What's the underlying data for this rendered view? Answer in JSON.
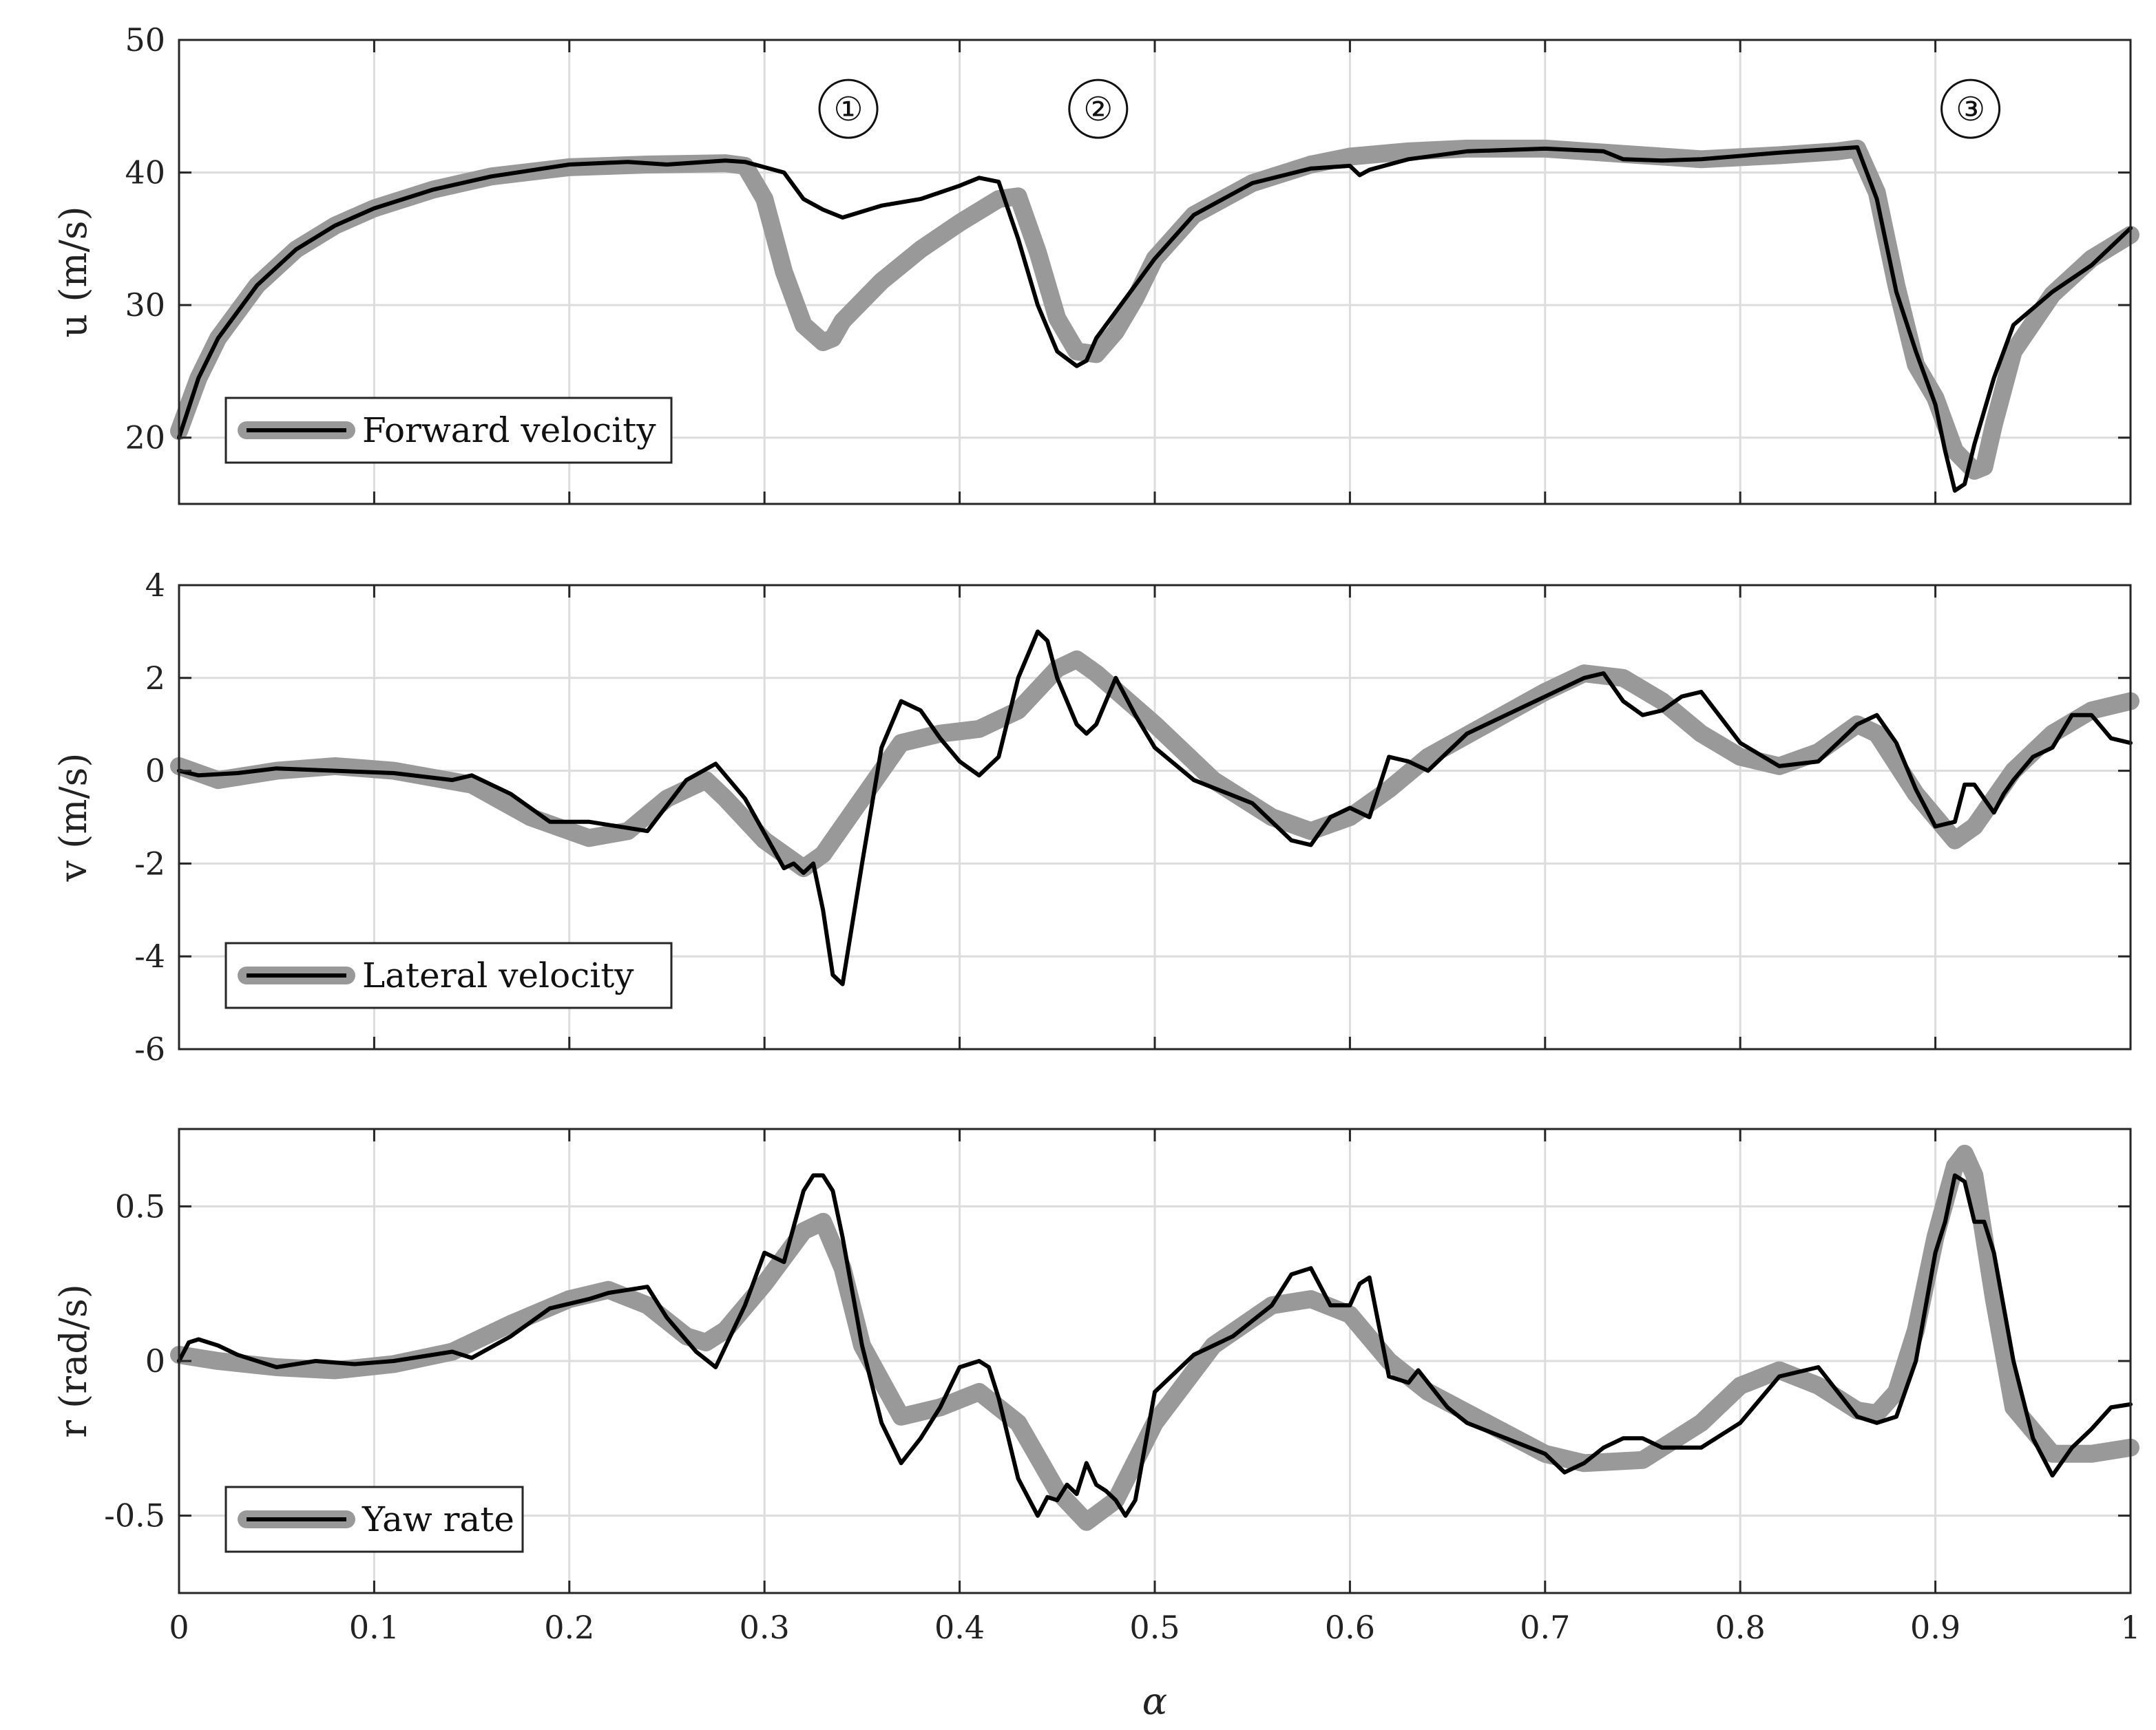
{
  "chart_data": [
    {
      "type": "line",
      "ylabel": "u  (m/s)",
      "xlim": [
        0,
        1
      ],
      "ylim": [
        15,
        50
      ],
      "yticks": [
        20,
        30,
        40,
        50
      ],
      "ytick_labels": [
        "20",
        "30",
        "40",
        "50"
      ],
      "xtick_labels_visible": false,
      "grid": true,
      "legend": {
        "placement": "bottom-left",
        "label": "Forward velocity"
      },
      "annotations": [
        {
          "text": "①",
          "x": 0.343,
          "y": 44.8
        },
        {
          "text": "②",
          "x": 0.471,
          "y": 44.8
        },
        {
          "text": "③",
          "x": 0.918,
          "y": 44.8
        }
      ],
      "series": [
        {
          "name": "reference",
          "color": "#999999",
          "x": [
            0,
            0.01,
            0.02,
            0.04,
            0.06,
            0.08,
            0.1,
            0.13,
            0.16,
            0.2,
            0.24,
            0.28,
            0.29,
            0.3,
            0.31,
            0.32,
            0.33,
            0.335,
            0.34,
            0.36,
            0.38,
            0.4,
            0.42,
            0.43,
            0.44,
            0.45,
            0.46,
            0.47,
            0.48,
            0.49,
            0.5,
            0.52,
            0.55,
            0.58,
            0.6,
            0.63,
            0.66,
            0.7,
            0.74,
            0.78,
            0.82,
            0.85,
            0.86,
            0.87,
            0.88,
            0.89,
            0.9,
            0.91,
            0.92,
            0.925,
            0.93,
            0.94,
            0.96,
            0.98,
            1.0
          ],
          "y": [
            20.5,
            24.5,
            27.5,
            31.5,
            34.2,
            36.0,
            37.3,
            38.7,
            39.7,
            40.4,
            40.6,
            40.7,
            40.5,
            38.0,
            32.5,
            28.5,
            27.2,
            27.5,
            28.8,
            31.8,
            34.2,
            36.2,
            38.0,
            38.2,
            34.0,
            29.0,
            26.5,
            26.3,
            28.0,
            30.5,
            33.5,
            36.8,
            39.2,
            40.6,
            41.2,
            41.6,
            41.8,
            41.8,
            41.4,
            41.0,
            41.3,
            41.6,
            41.8,
            38.5,
            31.5,
            25.5,
            23.0,
            19.0,
            17.5,
            17.8,
            21.0,
            26.5,
            30.8,
            33.5,
            35.3
          ]
        },
        {
          "name": "measured",
          "color": "#000000",
          "x": [
            0,
            0.01,
            0.02,
            0.04,
            0.06,
            0.08,
            0.1,
            0.13,
            0.16,
            0.2,
            0.23,
            0.25,
            0.28,
            0.29,
            0.31,
            0.32,
            0.33,
            0.34,
            0.36,
            0.38,
            0.4,
            0.41,
            0.42,
            0.43,
            0.44,
            0.45,
            0.46,
            0.465,
            0.47,
            0.48,
            0.49,
            0.5,
            0.52,
            0.55,
            0.58,
            0.6,
            0.605,
            0.61,
            0.63,
            0.66,
            0.7,
            0.73,
            0.74,
            0.76,
            0.78,
            0.82,
            0.85,
            0.86,
            0.87,
            0.88,
            0.89,
            0.9,
            0.905,
            0.91,
            0.915,
            0.92,
            0.93,
            0.94,
            0.96,
            0.98,
            1.0
          ],
          "y": [
            20.0,
            24.5,
            27.5,
            31.5,
            34.2,
            36.0,
            37.3,
            38.7,
            39.7,
            40.6,
            40.8,
            40.6,
            40.9,
            40.8,
            40.0,
            38.0,
            37.2,
            36.6,
            37.5,
            38.0,
            39.0,
            39.6,
            39.3,
            35.0,
            30.0,
            26.5,
            25.4,
            25.8,
            27.5,
            29.5,
            31.5,
            33.5,
            36.8,
            39.2,
            40.3,
            40.5,
            39.8,
            40.2,
            41.0,
            41.6,
            41.8,
            41.6,
            41.0,
            40.9,
            41.0,
            41.5,
            41.8,
            41.9,
            38.0,
            31.0,
            26.5,
            22.5,
            19.0,
            16.0,
            16.5,
            19.5,
            24.5,
            28.5,
            31.0,
            33.0,
            35.8
          ]
        }
      ]
    },
    {
      "type": "line",
      "ylabel": "v  (m/s)",
      "xlim": [
        0,
        1
      ],
      "ylim": [
        -6,
        4
      ],
      "yticks": [
        -6,
        -4,
        -2,
        0,
        2,
        4
      ],
      "ytick_labels": [
        "-6",
        "-4",
        "-2",
        "0",
        "2",
        "4"
      ],
      "xtick_labels_visible": false,
      "grid": true,
      "legend": {
        "placement": "bottom-left",
        "label": "Lateral velocity"
      },
      "series": [
        {
          "name": "reference",
          "color": "#999999",
          "x": [
            0,
            0.02,
            0.05,
            0.08,
            0.11,
            0.15,
            0.18,
            0.21,
            0.23,
            0.25,
            0.27,
            0.28,
            0.3,
            0.32,
            0.33,
            0.35,
            0.37,
            0.39,
            0.41,
            0.43,
            0.45,
            0.46,
            0.47,
            0.5,
            0.53,
            0.56,
            0.58,
            0.6,
            0.62,
            0.64,
            0.67,
            0.7,
            0.72,
            0.74,
            0.76,
            0.78,
            0.8,
            0.82,
            0.84,
            0.86,
            0.87,
            0.89,
            0.91,
            0.92,
            0.94,
            0.96,
            0.98,
            1.0
          ],
          "y": [
            0.1,
            -0.2,
            0.0,
            0.1,
            0.0,
            -0.3,
            -1.0,
            -1.45,
            -1.3,
            -0.6,
            -0.2,
            -0.6,
            -1.5,
            -2.1,
            -1.8,
            -0.6,
            0.6,
            0.8,
            0.9,
            1.3,
            2.2,
            2.4,
            2.1,
            1.0,
            -0.2,
            -1.0,
            -1.3,
            -1.0,
            -0.4,
            0.3,
            1.0,
            1.7,
            2.1,
            2.0,
            1.5,
            0.8,
            0.3,
            0.1,
            0.4,
            1.0,
            0.8,
            -0.5,
            -1.5,
            -1.2,
            0.0,
            0.8,
            1.3,
            1.5
          ]
        },
        {
          "name": "measured",
          "color": "#000000",
          "x": [
            0,
            0.01,
            0.03,
            0.05,
            0.08,
            0.11,
            0.14,
            0.15,
            0.17,
            0.19,
            0.21,
            0.24,
            0.26,
            0.275,
            0.29,
            0.31,
            0.315,
            0.32,
            0.325,
            0.33,
            0.335,
            0.34,
            0.35,
            0.36,
            0.37,
            0.38,
            0.39,
            0.4,
            0.41,
            0.42,
            0.43,
            0.44,
            0.445,
            0.45,
            0.455,
            0.46,
            0.465,
            0.47,
            0.48,
            0.49,
            0.5,
            0.52,
            0.55,
            0.57,
            0.58,
            0.59,
            0.6,
            0.61,
            0.62,
            0.63,
            0.64,
            0.65,
            0.66,
            0.68,
            0.7,
            0.72,
            0.73,
            0.74,
            0.75,
            0.76,
            0.77,
            0.78,
            0.8,
            0.82,
            0.84,
            0.86,
            0.87,
            0.88,
            0.89,
            0.9,
            0.91,
            0.915,
            0.92,
            0.93,
            0.935,
            0.94,
            0.95,
            0.96,
            0.97,
            0.98,
            0.99,
            1.0
          ],
          "y": [
            0.0,
            -0.1,
            -0.05,
            0.05,
            0.0,
            -0.05,
            -0.2,
            -0.1,
            -0.5,
            -1.1,
            -1.1,
            -1.3,
            -0.2,
            0.15,
            -0.6,
            -2.1,
            -2.0,
            -2.2,
            -2.0,
            -3.0,
            -4.4,
            -4.6,
            -2.0,
            0.5,
            1.5,
            1.3,
            0.7,
            0.2,
            -0.1,
            0.3,
            2.0,
            3.0,
            2.8,
            2.0,
            1.5,
            1.0,
            0.8,
            1.0,
            2.0,
            1.2,
            0.5,
            -0.2,
            -0.7,
            -1.5,
            -1.6,
            -1.0,
            -0.8,
            -1.0,
            0.3,
            0.2,
            0.0,
            0.4,
            0.8,
            1.2,
            1.6,
            2.0,
            2.1,
            1.5,
            1.2,
            1.3,
            1.6,
            1.7,
            0.6,
            0.1,
            0.2,
            1.0,
            1.2,
            0.6,
            -0.4,
            -1.2,
            -1.1,
            -0.3,
            -0.3,
            -0.9,
            -0.5,
            -0.2,
            0.3,
            0.5,
            1.2,
            1.2,
            0.7,
            0.6
          ]
        }
      ]
    },
    {
      "type": "line",
      "ylabel": "r  (rad/s)",
      "xlabel": "α",
      "xlim": [
        0,
        1
      ],
      "ylim": [
        -0.75,
        0.75
      ],
      "xticks": [
        0,
        0.1,
        0.2,
        0.3,
        0.4,
        0.5,
        0.6,
        0.7,
        0.8,
        0.9,
        1
      ],
      "xtick_labels": [
        "0",
        "0.1",
        "0.2",
        "0.3",
        "0.4",
        "0.5",
        "0.6",
        "0.7",
        "0.8",
        "0.9",
        "1"
      ],
      "yticks": [
        -0.5,
        0,
        0.5
      ],
      "ytick_labels": [
        "-0.5",
        "0",
        "0.5"
      ],
      "grid": true,
      "legend": {
        "placement": "bottom-left",
        "label": "Yaw rate"
      },
      "series": [
        {
          "name": "reference",
          "color": "#999999",
          "x": [
            0,
            0.02,
            0.05,
            0.08,
            0.11,
            0.14,
            0.17,
            0.2,
            0.22,
            0.24,
            0.26,
            0.27,
            0.28,
            0.3,
            0.32,
            0.33,
            0.34,
            0.35,
            0.37,
            0.39,
            0.41,
            0.43,
            0.45,
            0.465,
            0.48,
            0.5,
            0.53,
            0.56,
            0.58,
            0.6,
            0.62,
            0.64,
            0.67,
            0.7,
            0.72,
            0.75,
            0.78,
            0.8,
            0.82,
            0.84,
            0.86,
            0.87,
            0.88,
            0.89,
            0.9,
            0.91,
            0.915,
            0.92,
            0.93,
            0.94,
            0.96,
            0.98,
            1.0
          ],
          "y": [
            0.02,
            0.0,
            -0.02,
            -0.03,
            -0.01,
            0.03,
            0.12,
            0.2,
            0.23,
            0.18,
            0.08,
            0.06,
            0.1,
            0.25,
            0.42,
            0.45,
            0.3,
            0.05,
            -0.18,
            -0.15,
            -0.1,
            -0.2,
            -0.42,
            -0.52,
            -0.45,
            -0.2,
            0.05,
            0.18,
            0.2,
            0.15,
            0.0,
            -0.1,
            -0.2,
            -0.3,
            -0.33,
            -0.32,
            -0.2,
            -0.08,
            -0.03,
            -0.08,
            -0.16,
            -0.17,
            -0.1,
            0.1,
            0.4,
            0.63,
            0.67,
            0.6,
            0.2,
            -0.15,
            -0.3,
            -0.3,
            -0.28
          ]
        },
        {
          "name": "measured",
          "color": "#000000",
          "x": [
            0,
            0.005,
            0.01,
            0.02,
            0.03,
            0.05,
            0.07,
            0.09,
            0.11,
            0.13,
            0.14,
            0.15,
            0.17,
            0.19,
            0.21,
            0.22,
            0.24,
            0.25,
            0.265,
            0.275,
            0.29,
            0.3,
            0.31,
            0.32,
            0.325,
            0.33,
            0.335,
            0.34,
            0.35,
            0.36,
            0.37,
            0.38,
            0.39,
            0.4,
            0.41,
            0.415,
            0.42,
            0.43,
            0.44,
            0.445,
            0.45,
            0.455,
            0.46,
            0.465,
            0.47,
            0.475,
            0.48,
            0.485,
            0.49,
            0.5,
            0.52,
            0.54,
            0.56,
            0.57,
            0.58,
            0.59,
            0.6,
            0.605,
            0.61,
            0.62,
            0.63,
            0.635,
            0.64,
            0.65,
            0.66,
            0.68,
            0.7,
            0.71,
            0.72,
            0.73,
            0.74,
            0.75,
            0.76,
            0.78,
            0.8,
            0.82,
            0.84,
            0.86,
            0.87,
            0.88,
            0.89,
            0.9,
            0.905,
            0.91,
            0.915,
            0.92,
            0.925,
            0.93,
            0.94,
            0.95,
            0.96,
            0.97,
            0.98,
            0.99,
            1.0
          ],
          "y": [
            0.0,
            0.06,
            0.07,
            0.05,
            0.02,
            -0.02,
            0.0,
            -0.01,
            0.0,
            0.02,
            0.03,
            0.01,
            0.08,
            0.17,
            0.2,
            0.22,
            0.24,
            0.14,
            0.03,
            -0.02,
            0.18,
            0.35,
            0.32,
            0.55,
            0.6,
            0.6,
            0.55,
            0.4,
            0.05,
            -0.2,
            -0.33,
            -0.25,
            -0.15,
            -0.02,
            0.0,
            -0.02,
            -0.12,
            -0.38,
            -0.5,
            -0.44,
            -0.45,
            -0.4,
            -0.43,
            -0.33,
            -0.4,
            -0.42,
            -0.45,
            -0.5,
            -0.45,
            -0.1,
            0.02,
            0.08,
            0.18,
            0.28,
            0.3,
            0.18,
            0.18,
            0.25,
            0.27,
            -0.05,
            -0.07,
            -0.03,
            -0.07,
            -0.15,
            -0.2,
            -0.25,
            -0.3,
            -0.36,
            -0.33,
            -0.28,
            -0.25,
            -0.25,
            -0.28,
            -0.28,
            -0.2,
            -0.05,
            -0.02,
            -0.18,
            -0.2,
            -0.18,
            0.0,
            0.35,
            0.45,
            0.6,
            0.58,
            0.45,
            0.45,
            0.35,
            0.0,
            -0.25,
            -0.37,
            -0.28,
            -0.22,
            -0.15,
            -0.14
          ]
        }
      ]
    }
  ]
}
